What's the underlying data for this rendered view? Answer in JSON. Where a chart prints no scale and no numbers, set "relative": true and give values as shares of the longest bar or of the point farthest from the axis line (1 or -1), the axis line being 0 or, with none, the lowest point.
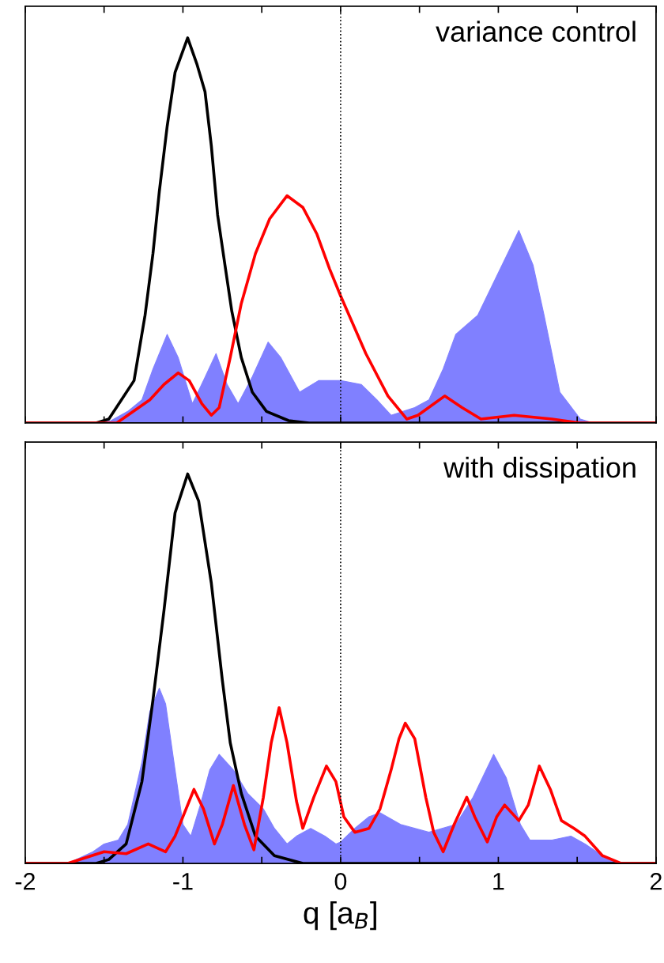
{
  "chart_data": [
    {
      "type": "line",
      "relative": true,
      "annotations": [
        "variance control"
      ],
      "tick_labels": false,
      "xlim": [
        -2,
        2
      ],
      "xticks": [
        {
          "value": -2,
          "label": null
        },
        {
          "value": -1.5,
          "label": null
        },
        {
          "value": -1,
          "label": null
        },
        {
          "value": -0.5,
          "label": null
        },
        {
          "value": 0,
          "label": null
        },
        {
          "value": 0.5,
          "label": null
        },
        {
          "value": 1,
          "label": null
        },
        {
          "value": 1.5,
          "label": null
        },
        {
          "value": 2,
          "label": null
        }
      ],
      "ref_lines": [
        {
          "axis": "x",
          "value": 0,
          "color": "#000000",
          "line_style": "dotted"
        }
      ],
      "series": [
        {
          "type": "area",
          "color": "#8080ff",
          "x": [
            -2,
            -1.6,
            -1.46,
            -1.35,
            -1.26,
            -1.19,
            -1.1,
            -1.03,
            -0.94,
            -0.87,
            -0.79,
            -0.72,
            -0.65,
            -0.56,
            -0.46,
            -0.38,
            -0.26,
            -0.14,
            0,
            0.13,
            0.23,
            0.32,
            0.47,
            0.56,
            0.65,
            0.73,
            0.87,
            1.0,
            1.13,
            1.22,
            1.29,
            1.39,
            1.52,
            1.6,
            2
          ],
          "values": [
            0,
            0,
            0.005,
            0.03,
            0.06,
            0.14,
            0.23,
            0.17,
            0.05,
            0.11,
            0.18,
            0.1,
            0.05,
            0.12,
            0.21,
            0.17,
            0.08,
            0.11,
            0.11,
            0.1,
            0.06,
            0.02,
            0.04,
            0.06,
            0.14,
            0.23,
            0.28,
            0.39,
            0.5,
            0.41,
            0.28,
            0.08,
            0.01,
            0,
            0
          ]
        },
        {
          "color": "#000000",
          "x": [
            -2,
            -1.55,
            -1.47,
            -1.31,
            -1.24,
            -1.19,
            -1.15,
            -1.1,
            -1.05,
            -0.97,
            -0.91,
            -0.86,
            -0.82,
            -0.78,
            -0.73,
            -0.69,
            -0.63,
            -0.56,
            -0.47,
            -0.33,
            -0.2,
            2
          ],
          "values": [
            0,
            0,
            0.01,
            0.11,
            0.28,
            0.44,
            0.6,
            0.77,
            0.91,
            1.0,
            0.93,
            0.86,
            0.72,
            0.54,
            0.4,
            0.29,
            0.17,
            0.08,
            0.03,
            0.006,
            0,
            0
          ]
        },
        {
          "color": "#ff0000",
          "x": [
            -2,
            -1.42,
            -1.35,
            -1.21,
            -1.12,
            -1.03,
            -0.96,
            -0.88,
            -0.82,
            -0.77,
            -0.7,
            -0.63,
            -0.54,
            -0.45,
            -0.34,
            -0.24,
            -0.15,
            -0.07,
            0,
            0.16,
            0.3,
            0.42,
            0.49,
            0.66,
            0.77,
            0.89,
            1.1,
            1.34,
            1.52,
            2
          ],
          "values": [
            0,
            0,
            0.02,
            0.06,
            0.1,
            0.13,
            0.11,
            0.05,
            0.02,
            0.04,
            0.17,
            0.31,
            0.44,
            0.53,
            0.59,
            0.56,
            0.49,
            0.4,
            0.33,
            0.18,
            0.07,
            0.01,
            0.02,
            0.07,
            0.04,
            0.01,
            0.02,
            0.01,
            0,
            0
          ]
        }
      ]
    },
    {
      "type": "line",
      "relative": true,
      "annotations": [
        "with dissipation"
      ],
      "tick_labels": "x",
      "xlim": [
        -2,
        2
      ],
      "xlabel": "q [a$_{B}$]",
      "xticks": [
        -2,
        {
          "value": -1.5,
          "label": null
        },
        -1,
        {
          "value": -0.5,
          "label": null
        },
        0,
        {
          "value": 0.5,
          "label": null
        },
        1,
        {
          "value": 1.5,
          "label": null
        },
        2
      ],
      "ref_lines": [
        {
          "axis": "x",
          "value": 0,
          "color": "#000000",
          "line_style": "dotted"
        }
      ],
      "series": [
        {
          "type": "area",
          "color": "#8080ff",
          "x": [
            -2,
            -1.73,
            -1.57,
            -1.5,
            -1.41,
            -1.35,
            -1.26,
            -1.21,
            -1.15,
            -1.11,
            -1.05,
            -1.0,
            -0.95,
            -0.89,
            -0.83,
            -0.77,
            -0.68,
            -0.59,
            -0.49,
            -0.42,
            -0.34,
            -0.28,
            -0.19,
            -0.1,
            -0.03,
            0,
            0.09,
            0.18,
            0.25,
            0.38,
            0.56,
            0.73,
            0.84,
            0.97,
            1.05,
            1.14,
            1.2,
            1.34,
            1.46,
            1.55,
            1.66,
            1.76,
            2
          ],
          "values": [
            0,
            0,
            0.03,
            0.05,
            0.06,
            0.1,
            0.26,
            0.39,
            0.45,
            0.41,
            0.24,
            0.1,
            0.07,
            0.15,
            0.24,
            0.28,
            0.24,
            0.18,
            0.14,
            0.09,
            0.05,
            0.07,
            0.09,
            0.07,
            0.05,
            0.055,
            0.09,
            0.12,
            0.13,
            0.1,
            0.08,
            0.1,
            0.17,
            0.28,
            0.22,
            0.1,
            0.06,
            0.06,
            0.07,
            0.05,
            0.02,
            0,
            0
          ]
        },
        {
          "color": "#000000",
          "x": [
            -2,
            -1.55,
            -1.47,
            -1.36,
            -1.26,
            -1.19,
            -1.12,
            -1.05,
            -0.97,
            -0.9,
            -0.82,
            -0.75,
            -0.7,
            -0.63,
            -0.54,
            -0.42,
            -0.24,
            2
          ],
          "values": [
            0,
            0,
            0.01,
            0.05,
            0.21,
            0.42,
            0.65,
            0.9,
            1.0,
            0.93,
            0.72,
            0.47,
            0.31,
            0.18,
            0.07,
            0.02,
            0,
            0
          ]
        },
        {
          "color": "#ff0000",
          "x": [
            -2,
            -1.73,
            -1.5,
            -1.36,
            -1.22,
            -1.11,
            -1.05,
            -0.93,
            -0.87,
            -0.8,
            -0.75,
            -0.68,
            -0.61,
            -0.55,
            -0.49,
            -0.44,
            -0.39,
            -0.34,
            -0.28,
            -0.24,
            -0.17,
            -0.09,
            -0.03,
            0.02,
            0.09,
            0.18,
            0.25,
            0.32,
            0.37,
            0.41,
            0.47,
            0.54,
            0.59,
            0.65,
            0.72,
            0.8,
            0.85,
            0.93,
            0.99,
            1.04,
            1.13,
            1.19,
            1.26,
            1.33,
            1.4,
            1.48,
            1.55,
            1.66,
            1.78,
            2
          ],
          "values": [
            0,
            0,
            0.03,
            0.025,
            0.05,
            0.03,
            0.07,
            0.19,
            0.14,
            0.05,
            0.1,
            0.2,
            0.1,
            0.035,
            0.17,
            0.31,
            0.4,
            0.31,
            0.16,
            0.09,
            0.17,
            0.25,
            0.21,
            0.12,
            0.08,
            0.09,
            0.14,
            0.24,
            0.32,
            0.36,
            0.32,
            0.17,
            0.08,
            0.03,
            0.1,
            0.17,
            0.12,
            0.055,
            0.12,
            0.15,
            0.11,
            0.15,
            0.25,
            0.19,
            0.11,
            0.09,
            0.07,
            0.02,
            0,
            0
          ]
        }
      ]
    }
  ]
}
